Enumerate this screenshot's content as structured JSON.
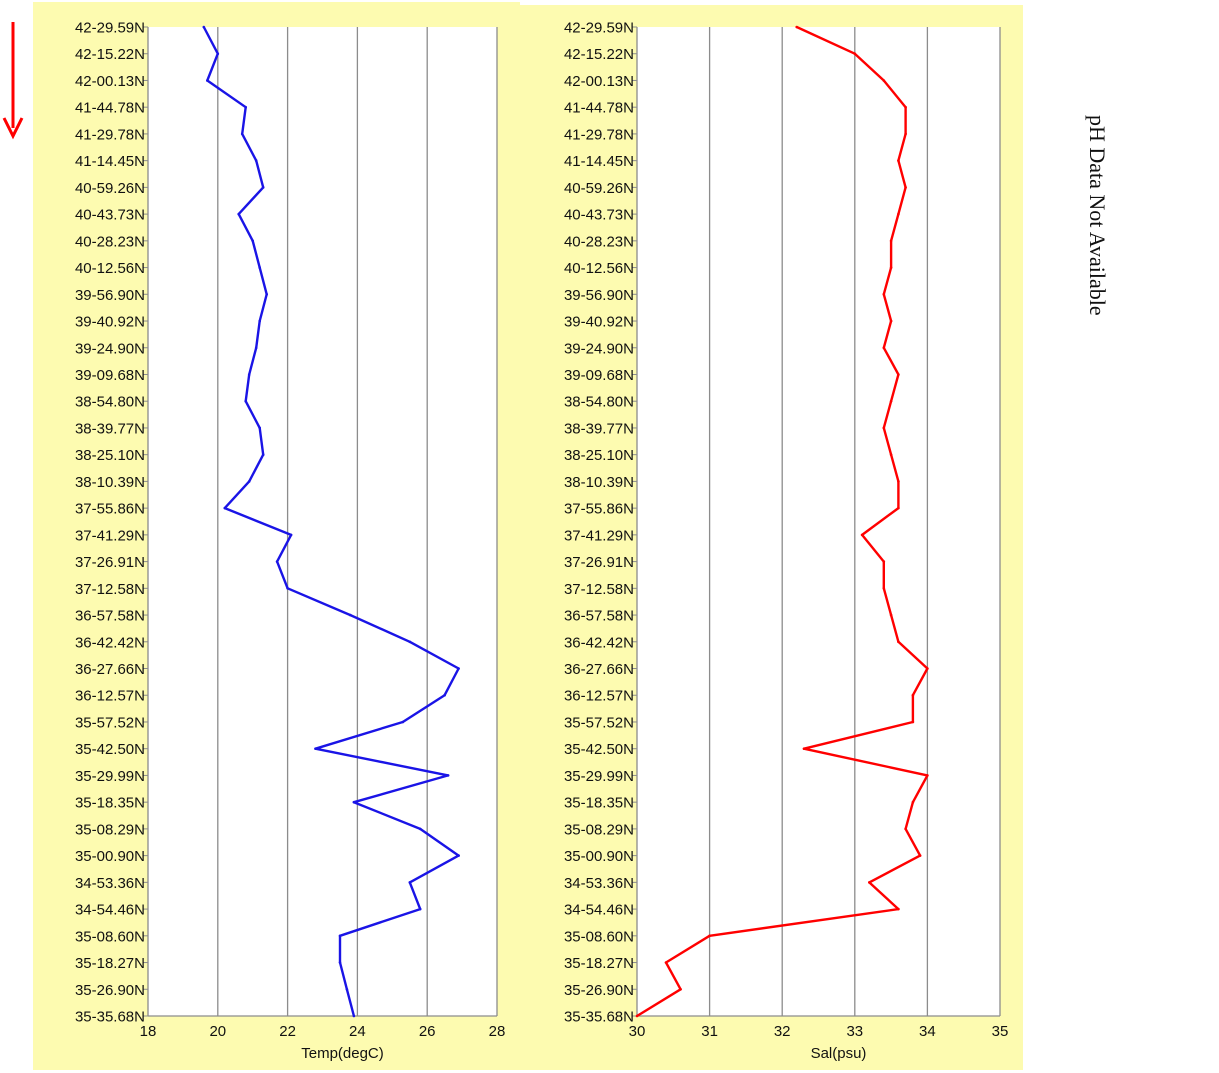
{
  "direction_arrow": {
    "color": "#ff0000",
    "icon": "down-arrow-icon"
  },
  "side_note": {
    "text": "pH Data Not Available"
  },
  "panel_background": "#fdfbb0",
  "lat_labels": [
    "42-29.59N",
    "42-15.22N",
    "42-00.13N",
    "41-44.78N",
    "41-29.78N",
    "41-14.45N",
    "40-59.26N",
    "40-43.73N",
    "40-28.23N",
    "40-12.56N",
    "39-56.90N",
    "39-40.92N",
    "39-24.90N",
    "39-09.68N",
    "38-54.80N",
    "38-39.77N",
    "38-25.10N",
    "38-10.39N",
    "37-55.86N",
    "37-41.29N",
    "37-26.91N",
    "37-12.58N",
    "36-57.58N",
    "36-42.42N",
    "36-27.66N",
    "36-12.57N",
    "35-57.52N",
    "35-42.50N",
    "35-29.99N",
    "35-18.35N",
    "35-08.29N",
    "35-00.90N",
    "34-53.36N",
    "34-54.46N",
    "35-08.60N",
    "35-18.27N",
    "35-26.90N",
    "35-35.68N"
  ],
  "chart_data": [
    {
      "type": "line",
      "title": "",
      "xlabel": "Temp(degC)",
      "ylabel": "",
      "xlim": [
        18,
        28
      ],
      "xticks": [
        "18",
        "20",
        "22",
        "24",
        "26",
        "28"
      ],
      "grid": true,
      "series": [
        {
          "color": "#1a14e6",
          "points": [
            [
              "42-29.59N",
              19.6
            ],
            [
              "42-15.22N",
              20.0
            ],
            [
              "42-00.13N",
              19.7
            ],
            [
              "41-44.78N",
              20.8
            ],
            [
              "41-29.78N",
              20.7
            ],
            [
              "41-14.45N",
              21.1
            ],
            [
              "40-59.26N",
              21.3
            ],
            [
              "40-43.73N",
              20.6
            ],
            [
              "40-28.23N",
              21.0
            ],
            [
              "40-12.56N",
              21.2
            ],
            [
              "39-56.90N",
              21.4
            ],
            [
              "39-40.92N",
              21.2
            ],
            [
              "39-24.90N",
              21.1
            ],
            [
              "39-09.68N",
              20.9
            ],
            [
              "38-54.80N",
              20.8
            ],
            [
              "38-39.77N",
              21.2
            ],
            [
              "38-25.10N",
              21.3
            ],
            [
              "38-10.39N",
              20.9
            ],
            [
              "37-55.86N",
              20.2
            ],
            [
              "37-41.29N",
              22.1
            ],
            [
              "37-26.91N",
              21.7
            ],
            [
              "37-12.58N",
              22.0
            ],
            [
              "36-57.58N",
              23.8
            ],
            [
              "36-42.42N",
              25.5
            ],
            [
              "36-27.66N",
              26.9
            ],
            [
              "36-12.57N",
              26.5
            ],
            [
              "35-57.52N",
              25.3
            ],
            [
              "35-42.50N",
              22.8
            ],
            [
              "35-29.99N",
              26.6
            ],
            [
              "35-18.35N",
              23.9
            ],
            [
              "35-08.29N",
              25.8
            ],
            [
              "35-00.90N",
              26.9
            ],
            [
              "34-53.36N",
              25.5
            ],
            [
              "34-54.46N",
              25.8
            ],
            [
              "35-08.60N",
              23.5
            ],
            [
              "35-18.27N",
              23.5
            ],
            [
              "35-26.90N",
              23.7
            ],
            [
              "35-35.68N",
              23.9
            ]
          ]
        }
      ]
    },
    {
      "type": "line",
      "title": "",
      "xlabel": "Sal(psu)",
      "ylabel": "",
      "xlim": [
        30,
        35
      ],
      "xticks": [
        "30",
        "31",
        "32",
        "33",
        "34",
        "35"
      ],
      "grid": true,
      "series": [
        {
          "color": "#ff0000",
          "points": [
            [
              "42-29.59N",
              32.2
            ],
            [
              "42-15.22N",
              33.0
            ],
            [
              "42-00.13N",
              33.4
            ],
            [
              "41-44.78N",
              33.7
            ],
            [
              "41-29.78N",
              33.7
            ],
            [
              "41-14.45N",
              33.6
            ],
            [
              "40-59.26N",
              33.7
            ],
            [
              "40-43.73N",
              33.6
            ],
            [
              "40-28.23N",
              33.5
            ],
            [
              "40-12.56N",
              33.5
            ],
            [
              "39-56.90N",
              33.4
            ],
            [
              "39-40.92N",
              33.5
            ],
            [
              "39-24.90N",
              33.4
            ],
            [
              "39-09.68N",
              33.6
            ],
            [
              "38-54.80N",
              33.5
            ],
            [
              "38-39.77N",
              33.4
            ],
            [
              "38-25.10N",
              33.5
            ],
            [
              "38-10.39N",
              33.6
            ],
            [
              "37-55.86N",
              33.6
            ],
            [
              "37-41.29N",
              33.1
            ],
            [
              "37-26.91N",
              33.4
            ],
            [
              "37-12.58N",
              33.4
            ],
            [
              "36-57.58N",
              33.5
            ],
            [
              "36-42.42N",
              33.6
            ],
            [
              "36-27.66N",
              34.0
            ],
            [
              "36-12.57N",
              33.8
            ],
            [
              "35-57.52N",
              33.8
            ],
            [
              "35-42.50N",
              32.3
            ],
            [
              "35-29.99N",
              34.0
            ],
            [
              "35-18.35N",
              33.8
            ],
            [
              "35-08.29N",
              33.7
            ],
            [
              "35-00.90N",
              33.9
            ],
            [
              "34-53.36N",
              33.2
            ],
            [
              "34-54.46N",
              33.6
            ],
            [
              "35-08.60N",
              31.0
            ],
            [
              "35-18.27N",
              30.4
            ],
            [
              "35-26.90N",
              30.6
            ],
            [
              "35-35.68N",
              30.0
            ]
          ]
        }
      ]
    }
  ]
}
